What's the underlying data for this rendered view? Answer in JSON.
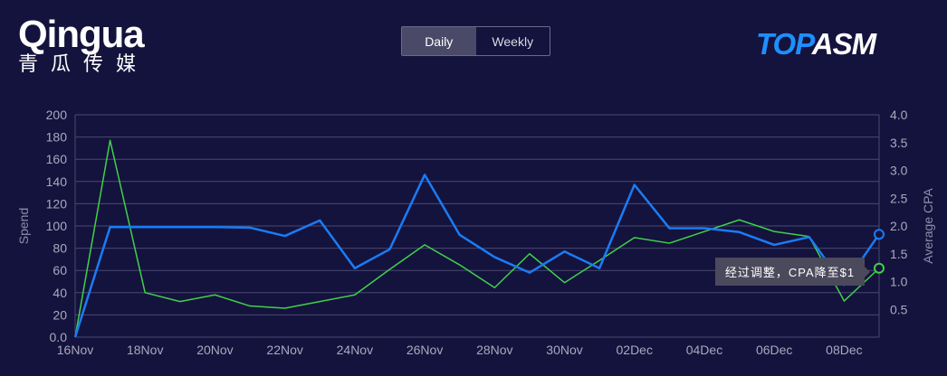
{
  "toggle": {
    "daily": "Daily",
    "weekly": "Weekly",
    "active": "Daily"
  },
  "logo": {
    "part1": "TOP",
    "part2": "ASM"
  },
  "tooltip": {
    "text": "经过调整，CPA降至$1"
  },
  "watermark": {
    "en": "Qingua",
    "cn": "青瓜传媒"
  },
  "colors": {
    "background": "#14133d",
    "spend": "#1a7cf5",
    "cpa": "#3fd14a",
    "grid": "#4a4970"
  },
  "chart_data": {
    "type": "line",
    "x": [
      "16Nov",
      "17Nov",
      "18Nov",
      "19Nov",
      "20Nov",
      "21Nov",
      "22Nov",
      "23Nov",
      "24Nov",
      "25Nov",
      "26Nov",
      "27Nov",
      "28Nov",
      "29Nov",
      "30Nov",
      "01Dec",
      "02Dec",
      "03Dec",
      "04Dec",
      "05Dec",
      "06Dec",
      "07Dec",
      "08Dec",
      "09Dec"
    ],
    "xticks": [
      "16Nov",
      "18Nov",
      "20Nov",
      "22Nov",
      "24Nov",
      "26Nov",
      "28Nov",
      "30Nov",
      "02Dec",
      "04Dec",
      "06Dec",
      "08Dec"
    ],
    "ylabel": "Spend",
    "y2label": "Average CPA",
    "ylim": [
      0,
      200
    ],
    "y2lim": [
      0,
      4.0
    ],
    "yticks": [
      "0.0",
      "20",
      "40",
      "60",
      "80",
      "100",
      "120",
      "140",
      "160",
      "180",
      "200"
    ],
    "y2ticks": [
      "0.5",
      "1.0",
      "1.5",
      "2.0",
      "2.5",
      "3.0",
      "3.5",
      "4.0"
    ],
    "grid": true,
    "series": [
      {
        "name": "Spend",
        "axis": "left",
        "values": [
          0,
          99,
          99,
          99,
          99,
          98.5,
          91,
          105,
          62,
          79,
          146,
          92,
          72,
          58,
          77,
          62,
          137,
          98,
          98,
          94.5,
          83,
          90,
          47,
          92.5
        ]
      },
      {
        "name": "Average CPA",
        "axis": "right",
        "values": [
          0,
          3.54,
          0.8,
          0.64,
          0.76,
          0.56,
          0.52,
          0.64,
          0.76,
          1.22,
          1.66,
          1.3,
          0.89,
          1.5,
          0.98,
          1.38,
          1.79,
          1.69,
          1.9,
          2.11,
          1.9,
          1.81,
          0.65,
          1.24
        ]
      }
    ]
  }
}
